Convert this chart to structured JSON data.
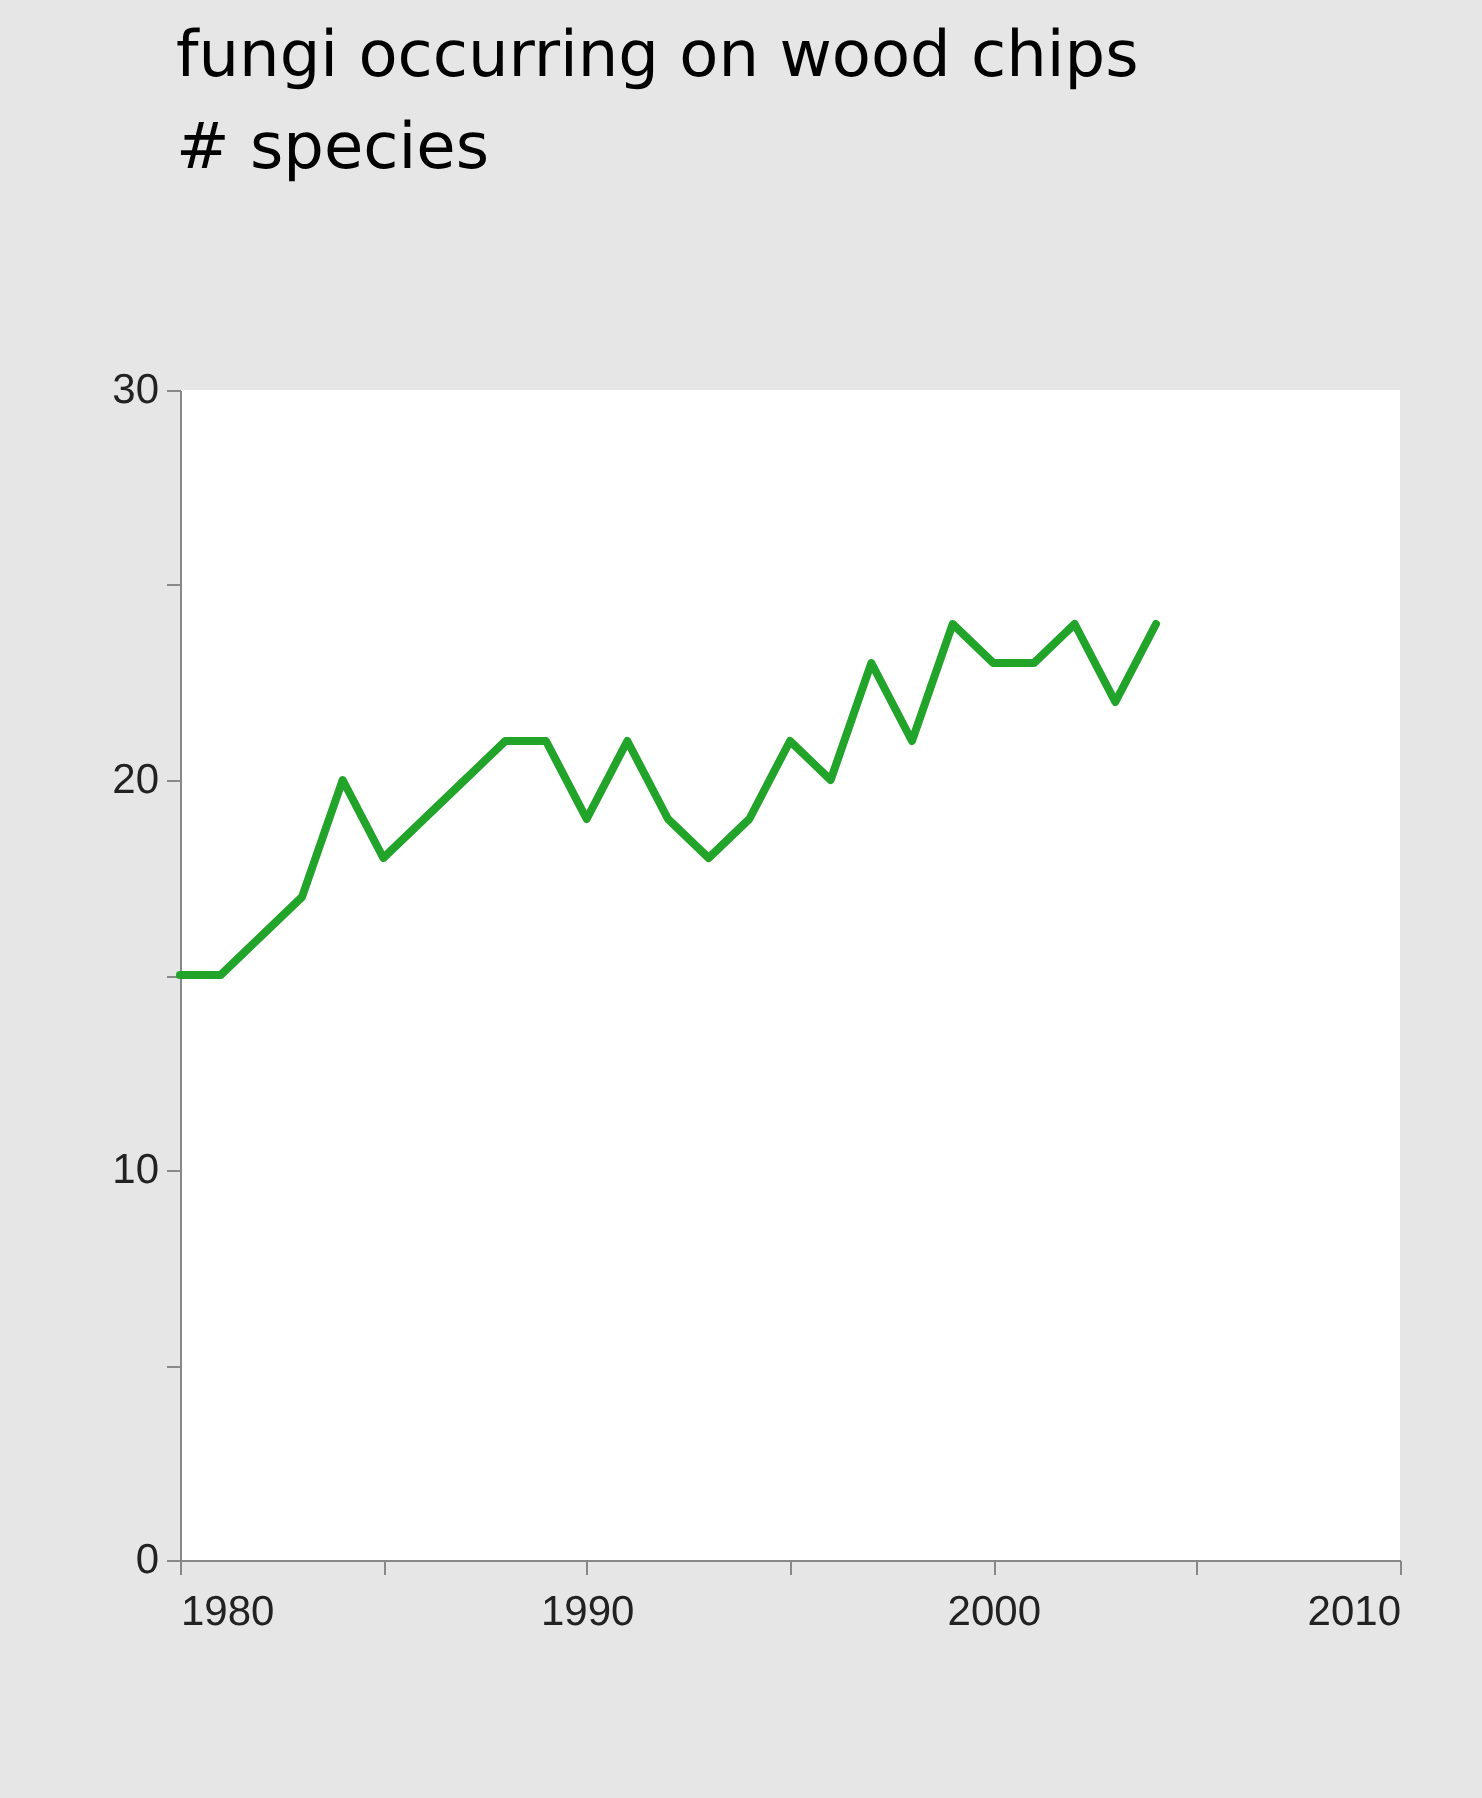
{
  "chart_data": {
    "type": "line",
    "title": "fungi occurring on wood chips",
    "ylabel": "# species",
    "x": [
      1980,
      1981,
      1982,
      1983,
      1984,
      1985,
      1986,
      1987,
      1988,
      1989,
      1990,
      1991,
      1992,
      1993,
      1994,
      1995,
      1996,
      1997,
      1998,
      1999,
      2000,
      2001,
      2002,
      2003,
      2004
    ],
    "series": [
      {
        "color": "#22a32a",
        "values": [
          15,
          15,
          16,
          17,
          20,
          18,
          19,
          20,
          21,
          21,
          19,
          21,
          19,
          18,
          19,
          21,
          20,
          23,
          21,
          24,
          23,
          23,
          24,
          22,
          24
        ]
      }
    ],
    "xlim": [
      1980,
      2010
    ],
    "xticks": [
      1980,
      {
        "value": 1985,
        "label": null
      },
      1990,
      {
        "value": 1995,
        "label": null
      },
      2000,
      {
        "value": 2005,
        "label": null
      },
      2010
    ],
    "ylim": [
      0,
      30
    ],
    "yticks": [
      0,
      {
        "value": 5,
        "label": null
      },
      10,
      {
        "value": 15,
        "label": null
      },
      20,
      {
        "value": 25,
        "label": null
      },
      30
    ]
  }
}
